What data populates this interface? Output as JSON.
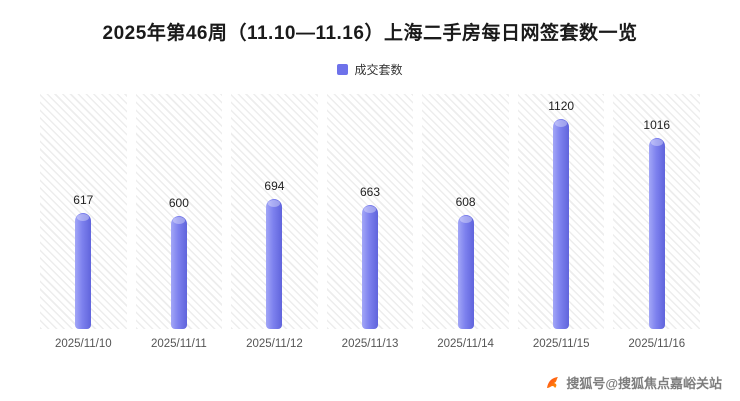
{
  "title": "2025年第46周（11.10—11.16）上海二手房每日网签套数一览",
  "legend": {
    "label": "成交套数",
    "color": "#6e72ea"
  },
  "chart_data": {
    "type": "bar",
    "title": "2025年第46周（11.10—11.16）上海二手房每日网签套数一览",
    "series_name": "成交套数",
    "categories": [
      "2025/11/10",
      "2025/11/11",
      "2025/11/12",
      "2025/11/13",
      "2025/11/14",
      "2025/11/15",
      "2025/11/16"
    ],
    "values": [
      617,
      600,
      694,
      663,
      608,
      1120,
      1016
    ],
    "xlabel": "",
    "ylabel": "",
    "ylim": [
      0,
      1200
    ],
    "grid": "hatched-background",
    "legend_position": "top-center",
    "bar_color": "#7d81ee"
  },
  "footer": {
    "text": "搜狐号@搜狐焦点嘉峪关站",
    "logo": "sohu-logo-icon"
  }
}
